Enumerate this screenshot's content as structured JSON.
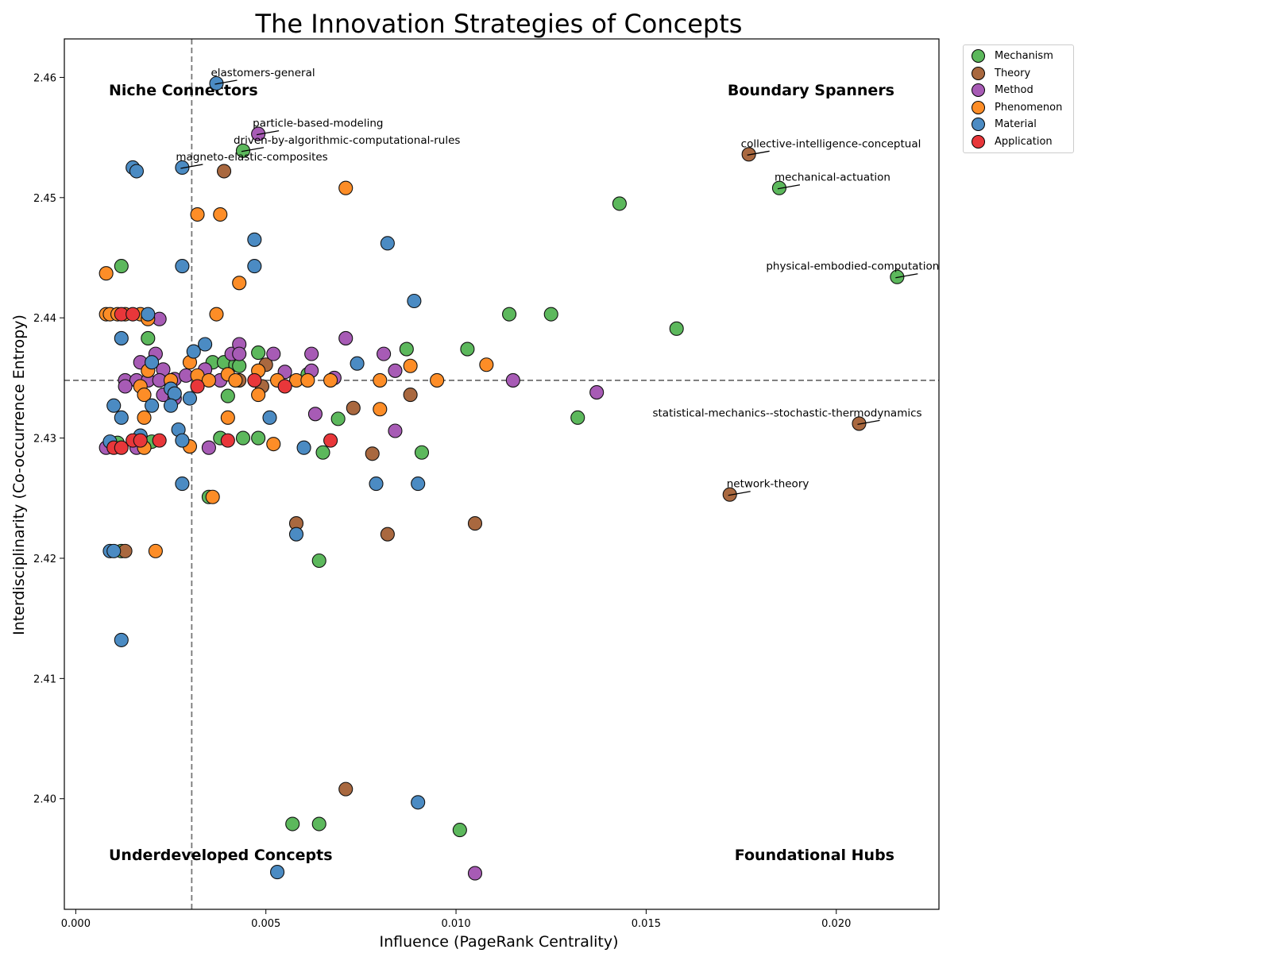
{
  "chart_data": {
    "type": "scatter",
    "title": "The Innovation Strategies of Concepts",
    "xlabel": "Influence (PageRank Centrality)",
    "ylabel": "Interdisciplinarity (Co-occurrence Entropy)",
    "xlim": [
      -0.0003,
      0.0227
    ],
    "ylim": [
      2.3908,
      2.4632
    ],
    "xticks": [
      "0.000",
      "0.005",
      "0.010",
      "0.015",
      "0.020"
    ],
    "yticks": [
      "2.40",
      "2.41",
      "2.42",
      "2.43",
      "2.44",
      "2.45",
      "2.46"
    ],
    "grid": false,
    "legend_placement": "outside-top-right",
    "reference_lines": {
      "x": 0.00305,
      "y": 2.4348
    },
    "quadrant_labels": [
      "Niche Connectors",
      "Boundary Spanners",
      "Underdeveloped Concepts",
      "Foundational Hubs"
    ],
    "categories": [
      "Mechanism",
      "Theory",
      "Method",
      "Phenomenon",
      "Material",
      "Application"
    ],
    "colors": {
      "Mechanism": "#5cb85c",
      "Theory": "#a9683f",
      "Method": "#a75bb5",
      "Phenomenon": "#fd8d27",
      "Material": "#4b8bc3",
      "Application": "#e8373a"
    },
    "series": [
      {
        "name": "Mechanism",
        "points": [
          [
            0.0012,
            2.4443
          ],
          [
            0.0019,
            2.4383
          ],
          [
            0.0036,
            2.4363
          ],
          [
            0.0039,
            2.4363
          ],
          [
            0.0042,
            2.4361
          ],
          [
            0.0043,
            2.436
          ],
          [
            0.0048,
            2.4371
          ],
          [
            0.004,
            2.4335
          ],
          [
            0.0038,
            2.43
          ],
          [
            0.0044,
            2.43
          ],
          [
            0.0048,
            2.43
          ],
          [
            0.0061,
            2.4353
          ],
          [
            0.0069,
            2.4316
          ],
          [
            0.0065,
            2.4288
          ],
          [
            0.0091,
            2.4288
          ],
          [
            0.0087,
            2.4374
          ],
          [
            0.0103,
            2.4374
          ],
          [
            0.0114,
            2.4403
          ],
          [
            0.0125,
            2.4403
          ],
          [
            0.0132,
            2.4317
          ],
          [
            0.0143,
            2.4495
          ],
          [
            0.0158,
            2.4391
          ],
          [
            0.0185,
            2.4508
          ],
          [
            0.0216,
            2.4434
          ],
          [
            0.0044,
            2.4539
          ],
          [
            0.0035,
            2.4251
          ],
          [
            0.0064,
            2.4198
          ],
          [
            0.0057,
            2.3979
          ],
          [
            0.0064,
            2.3979
          ],
          [
            0.0101,
            2.3974
          ],
          [
            0.0011,
            2.4296
          ],
          [
            0.0012,
            2.4206
          ],
          [
            0.0019,
            2.4296
          ],
          [
            0.002,
            2.4297
          ]
        ]
      },
      {
        "name": "Theory",
        "points": [
          [
            0.0039,
            2.4522
          ],
          [
            0.005,
            2.4361
          ],
          [
            0.0049,
            2.4343
          ],
          [
            0.0073,
            2.4325
          ],
          [
            0.0088,
            2.4336
          ],
          [
            0.0078,
            2.4287
          ],
          [
            0.0058,
            2.4229
          ],
          [
            0.0082,
            2.422
          ],
          [
            0.0105,
            2.4229
          ],
          [
            0.0177,
            2.4536
          ],
          [
            0.0206,
            2.4312
          ],
          [
            0.0172,
            2.4253
          ],
          [
            0.0071,
            2.4008
          ],
          [
            0.0013,
            2.4206
          ],
          [
            0.0043,
            2.4348
          ]
        ]
      },
      {
        "name": "Method",
        "points": [
          [
            0.0048,
            2.4553
          ],
          [
            0.0022,
            2.4399
          ],
          [
            0.0017,
            2.4363
          ],
          [
            0.0021,
            2.437
          ],
          [
            0.0023,
            2.4357
          ],
          [
            0.0013,
            2.4348
          ],
          [
            0.0016,
            2.4348
          ],
          [
            0.0019,
            2.4348
          ],
          [
            0.0022,
            2.4348
          ],
          [
            0.0026,
            2.4349
          ],
          [
            0.0029,
            2.4352
          ],
          [
            0.0034,
            2.4357
          ],
          [
            0.0038,
            2.4348
          ],
          [
            0.0041,
            2.437
          ],
          [
            0.0043,
            2.4378
          ],
          [
            0.0043,
            2.437
          ],
          [
            0.0052,
            2.437
          ],
          [
            0.0055,
            2.4355
          ],
          [
            0.0062,
            2.437
          ],
          [
            0.0062,
            2.4356
          ],
          [
            0.0068,
            2.435
          ],
          [
            0.0071,
            2.4383
          ],
          [
            0.0081,
            2.437
          ],
          [
            0.0084,
            2.4356
          ],
          [
            0.0063,
            2.432
          ],
          [
            0.0084,
            2.4306
          ],
          [
            0.0035,
            2.4292
          ],
          [
            0.0115,
            2.4348
          ],
          [
            0.0137,
            2.4338
          ],
          [
            0.0105,
            2.3938
          ],
          [
            0.0008,
            2.4292
          ],
          [
            0.0013,
            2.4343
          ],
          [
            0.0023,
            2.4336
          ],
          [
            0.0026,
            2.4333
          ],
          [
            0.0016,
            2.4292
          ]
        ]
      },
      {
        "name": "Phenomenon",
        "points": [
          [
            0.0008,
            2.4403
          ],
          [
            0.0009,
            2.4403
          ],
          [
            0.0011,
            2.4403
          ],
          [
            0.0013,
            2.4403
          ],
          [
            0.0017,
            2.4403
          ],
          [
            0.0019,
            2.4399
          ],
          [
            0.0008,
            2.4437
          ],
          [
            0.0032,
            2.4486
          ],
          [
            0.0038,
            2.4486
          ],
          [
            0.0071,
            2.4508
          ],
          [
            0.0043,
            2.4429
          ],
          [
            0.0037,
            2.4403
          ],
          [
            0.003,
            2.4363
          ],
          [
            0.0019,
            2.4356
          ],
          [
            0.0017,
            2.4343
          ],
          [
            0.0018,
            2.4336
          ],
          [
            0.0018,
            2.4317
          ],
          [
            0.0025,
            2.4348
          ],
          [
            0.0032,
            2.4352
          ],
          [
            0.0035,
            2.4348
          ],
          [
            0.004,
            2.4353
          ],
          [
            0.0042,
            2.4348
          ],
          [
            0.0048,
            2.4356
          ],
          [
            0.0048,
            2.4336
          ],
          [
            0.004,
            2.4317
          ],
          [
            0.0053,
            2.4348
          ],
          [
            0.0058,
            2.4348
          ],
          [
            0.0061,
            2.4348
          ],
          [
            0.0067,
            2.4348
          ],
          [
            0.008,
            2.4348
          ],
          [
            0.008,
            2.4324
          ],
          [
            0.0088,
            2.436
          ],
          [
            0.0095,
            2.4348
          ],
          [
            0.0108,
            2.4361
          ],
          [
            0.0052,
            2.4295
          ],
          [
            0.003,
            2.4293
          ],
          [
            0.0018,
            2.4292
          ],
          [
            0.0021,
            2.4206
          ],
          [
            0.0036,
            2.4251
          ]
        ]
      },
      {
        "name": "Material",
        "points": [
          [
            0.0037,
            2.4595
          ],
          [
            0.0015,
            2.4525
          ],
          [
            0.0016,
            2.4522
          ],
          [
            0.0028,
            2.4525
          ],
          [
            0.0047,
            2.4465
          ],
          [
            0.0082,
            2.4462
          ],
          [
            0.0028,
            2.4443
          ],
          [
            0.0047,
            2.4443
          ],
          [
            0.0089,
            2.4414
          ],
          [
            0.0012,
            2.4383
          ],
          [
            0.0019,
            2.4403
          ],
          [
            0.0034,
            2.4378
          ],
          [
            0.0031,
            2.4372
          ],
          [
            0.002,
            2.4363
          ],
          [
            0.0074,
            2.4362
          ],
          [
            0.0025,
            2.4341
          ],
          [
            0.0026,
            2.4337
          ],
          [
            0.003,
            2.4333
          ],
          [
            0.001,
            2.4327
          ],
          [
            0.002,
            2.4327
          ],
          [
            0.0025,
            2.4327
          ],
          [
            0.0012,
            2.4317
          ],
          [
            0.0051,
            2.4317
          ],
          [
            0.0027,
            2.4307
          ],
          [
            0.0017,
            2.4302
          ],
          [
            0.0028,
            2.4298
          ],
          [
            0.0009,
            2.4297
          ],
          [
            0.006,
            2.4292
          ],
          [
            0.0028,
            2.4262
          ],
          [
            0.0079,
            2.4262
          ],
          [
            0.009,
            2.4262
          ],
          [
            0.0058,
            2.422
          ],
          [
            0.0009,
            2.4206
          ],
          [
            0.001,
            2.4206
          ],
          [
            0.0012,
            2.4132
          ],
          [
            0.009,
            2.3997
          ],
          [
            0.0053,
            2.3939
          ]
        ]
      },
      {
        "name": "Application",
        "points": [
          [
            0.0012,
            2.4403
          ],
          [
            0.0015,
            2.4403
          ],
          [
            0.0032,
            2.4343
          ],
          [
            0.0047,
            2.4348
          ],
          [
            0.0055,
            2.4343
          ],
          [
            0.0067,
            2.4298
          ],
          [
            0.004,
            2.4298
          ],
          [
            0.0022,
            2.4298
          ],
          [
            0.0015,
            2.4298
          ],
          [
            0.0017,
            2.4298
          ],
          [
            0.001,
            2.4292
          ],
          [
            0.0012,
            2.4292
          ]
        ]
      }
    ],
    "annotations": [
      {
        "text": "elastomers-general",
        "x": 0.0037,
        "y": 2.4595
      },
      {
        "text": "particle-based-modeling",
        "x": 0.0048,
        "y": 2.4553
      },
      {
        "text": "driven-by-algorithmic-computational-rules",
        "x": 0.0044,
        "y": 2.4539
      },
      {
        "text": "magneto-elastic-composites",
        "x": 0.0028,
        "y": 2.4525
      },
      {
        "text": "collective-intelligence-conceptual",
        "x": 0.0177,
        "y": 2.4536
      },
      {
        "text": "mechanical-actuation",
        "x": 0.0185,
        "y": 2.4508
      },
      {
        "text": "physical-embodied-computation",
        "x": 0.0216,
        "y": 2.4434
      },
      {
        "text": "statistical-mechanics--stochastic-thermodynamics",
        "x": 0.0206,
        "y": 2.4312
      },
      {
        "text": "network-theory",
        "x": 0.0172,
        "y": 2.4253
      }
    ]
  }
}
